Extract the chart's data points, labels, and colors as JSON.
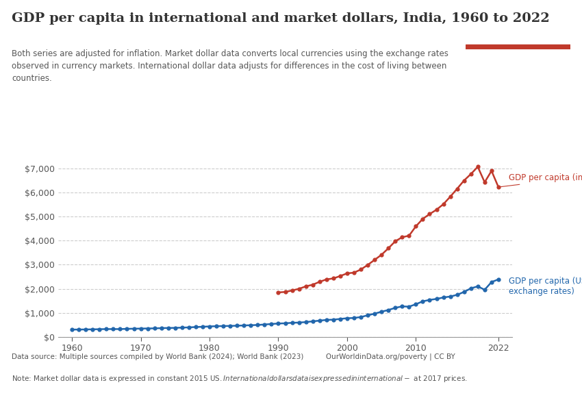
{
  "title": "GDP per capita in international and market dollars, India, 1960 to 2022",
  "subtitle": "Both series are adjusted for inflation. Market dollar data converts local currencies using the exchange rates\nobserved in currency markets. International dollar data adjusts for differences in the cost of living between\ncountries.",
  "xlabel": "",
  "ylabel": "",
  "bg_color": "#ffffff",
  "plot_bg_color": "#ffffff",
  "grid_color": "#cccccc",
  "title_color": "#333333",
  "subtitle_color": "#555555",
  "logo_bg": "#1a3a5c",
  "logo_accent": "#c0392b",
  "datasource_text": "Data source: Multiple sources compiled by World Bank (2024); World Bank (2023)          OurWorldinData.org/poverty | CC BY",
  "note_text": "Note: Market dollar data is expressed in constant 2015 US$. International dollars data is expressed in international-$ at 2017 prices.",
  "series_intl": {
    "label": "GDP per capita (international-$)",
    "color": "#c0392b",
    "years": [
      1990,
      1991,
      1992,
      1993,
      1994,
      1995,
      1996,
      1997,
      1998,
      1999,
      2000,
      2001,
      2002,
      2003,
      2004,
      2005,
      2006,
      2007,
      2008,
      2009,
      2010,
      2011,
      2012,
      2013,
      2014,
      2015,
      2016,
      2017,
      2018,
      2019,
      2020,
      2021,
      2022
    ],
    "values": [
      1850,
      1870,
      1930,
      2000,
      2100,
      2170,
      2290,
      2390,
      2430,
      2530,
      2640,
      2670,
      2800,
      2990,
      3200,
      3410,
      3680,
      3970,
      4140,
      4200,
      4590,
      4900,
      5100,
      5280,
      5510,
      5820,
      6150,
      6490,
      6760,
      7060,
      6420,
      6890,
      6220
    ],
    "marker": "o",
    "marker_size": 3.5
  },
  "series_market": {
    "label": "GDP per capita (US$ at market\nexchange rates)",
    "color": "#2166ac",
    "years": [
      1960,
      1961,
      1962,
      1963,
      1964,
      1965,
      1966,
      1967,
      1968,
      1969,
      1970,
      1971,
      1972,
      1973,
      1974,
      1975,
      1976,
      1977,
      1978,
      1979,
      1980,
      1981,
      1982,
      1983,
      1984,
      1985,
      1986,
      1987,
      1988,
      1989,
      1990,
      1991,
      1992,
      1993,
      1994,
      1995,
      1996,
      1997,
      1998,
      1999,
      2000,
      2001,
      2002,
      2003,
      2004,
      2005,
      2006,
      2007,
      2008,
      2009,
      2010,
      2011,
      2012,
      2013,
      2014,
      2015,
      2016,
      2017,
      2018,
      2019,
      2020,
      2021,
      2022
    ],
    "values": [
      310,
      310,
      315,
      318,
      325,
      330,
      330,
      330,
      340,
      345,
      350,
      355,
      360,
      370,
      375,
      380,
      390,
      400,
      415,
      425,
      440,
      450,
      455,
      460,
      470,
      480,
      490,
      500,
      520,
      540,
      560,
      570,
      590,
      600,
      620,
      650,
      680,
      710,
      720,
      750,
      780,
      790,
      830,
      900,
      970,
      1050,
      1120,
      1210,
      1270,
      1260,
      1360,
      1480,
      1540,
      1580,
      1640,
      1680,
      1750,
      1870,
      2020,
      2100,
      1960,
      2280,
      2390
    ],
    "marker": "o",
    "marker_size": 3.5
  },
  "ylim": [
    0,
    7500
  ],
  "yticks": [
    0,
    1000,
    2000,
    3000,
    4000,
    5000,
    6000,
    7000
  ],
  "xlim": [
    1958,
    2024
  ],
  "xticks": [
    1960,
    1970,
    1980,
    1990,
    2000,
    2010,
    2022
  ]
}
